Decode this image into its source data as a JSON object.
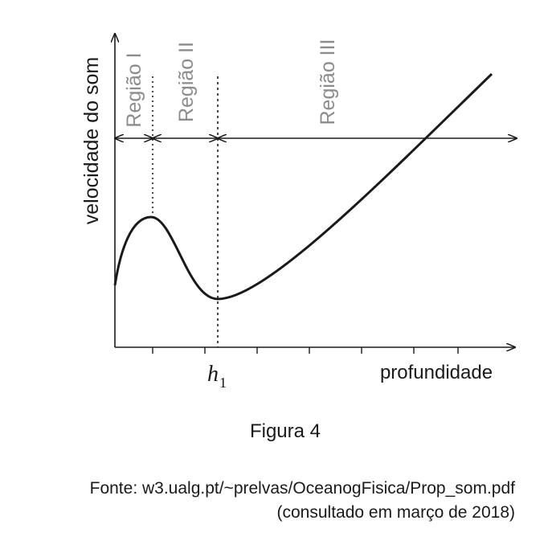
{
  "axes": {
    "y_label": "velocidade do som",
    "x_label": "profundidade",
    "h1": {
      "symbol": "h",
      "subscript": "1"
    }
  },
  "regions": [
    "Região I",
    "Região II",
    "Região III"
  ],
  "caption": "Figura 4",
  "source": {
    "line1": "Fonte: w3.ualg.pt/~prelvas/OceanogFisica/Prop_som.pdf",
    "line2": "(consultado em março de 2018)"
  }
}
